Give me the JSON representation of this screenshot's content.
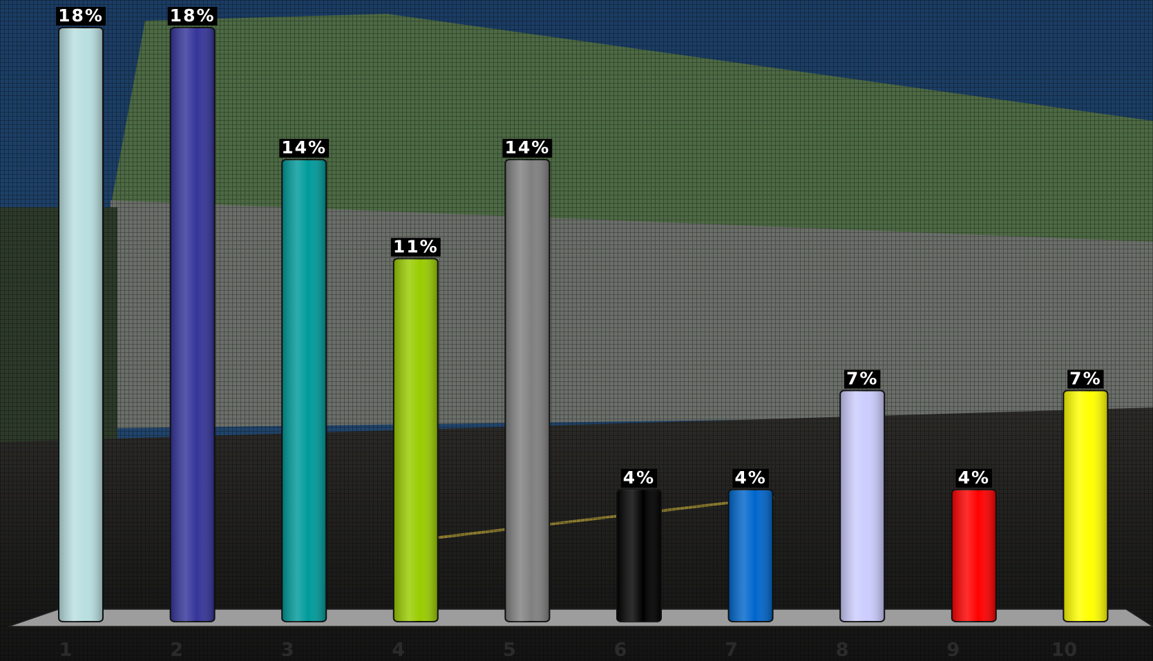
{
  "chart_data": {
    "type": "bar",
    "categories": [
      "1",
      "2",
      "3",
      "4",
      "5",
      "6",
      "7",
      "8",
      "9",
      "10"
    ],
    "values": [
      18,
      18,
      14,
      11,
      14,
      4,
      4,
      7,
      4,
      7
    ],
    "value_labels": [
      "18%",
      "18%",
      "14%",
      "11%",
      "14%",
      "4%",
      "4%",
      "7%",
      "4%",
      "7%"
    ],
    "colors": [
      "#b9dfe0",
      "#34349a",
      "#009a9a",
      "#99cc00",
      "#808080",
      "#000000",
      "#0066cc",
      "#ccccff",
      "#ff0000",
      "#ffff00"
    ]
  }
}
